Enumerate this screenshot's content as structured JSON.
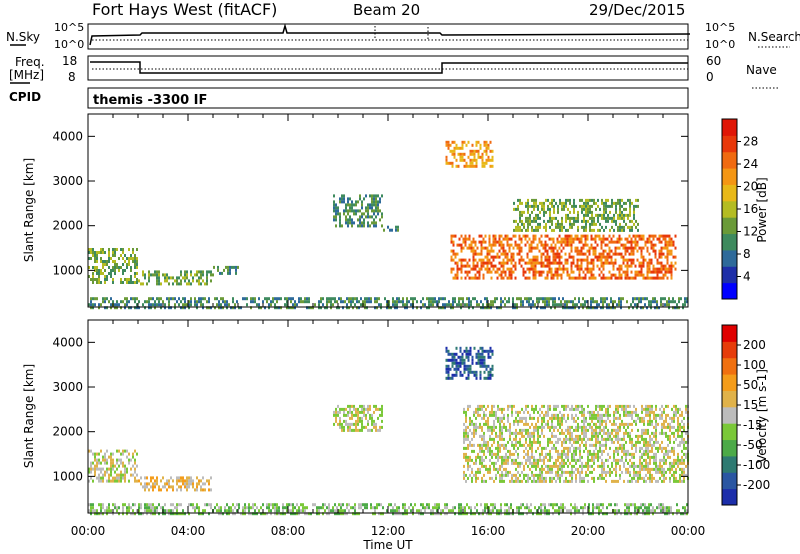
{
  "header": {
    "title": "Fort Hays West (fitACF)",
    "beam": "Beam 20",
    "date": "29/Dec/2015"
  },
  "panels": {
    "nsky": {
      "label": "N.Sky",
      "right_label": "N.Search",
      "left_ticks": [
        "10^5",
        "10^0"
      ],
      "right_ticks": [
        "10^5",
        "10^0"
      ]
    },
    "freq": {
      "label": "Freq.",
      "unit": "[MHz]",
      "right_label": "Nave",
      "left_ticks": [
        "18",
        "8"
      ],
      "right_ticks": [
        "60",
        "0"
      ]
    },
    "cpid": {
      "label": "CPID",
      "text": "themis -3300 IF"
    }
  },
  "colorbars": {
    "power": {
      "label": "Power [dB]",
      "ticks": [
        "28",
        "24",
        "20",
        "16",
        "12",
        "8",
        "4"
      ],
      "colors": [
        "#0000ff",
        "#1e2fa8",
        "#2e6a9a",
        "#3e8a5e",
        "#6a9a38",
        "#b4bc22",
        "#e8b818",
        "#f49614",
        "#f06a10",
        "#e8380a",
        "#e01606"
      ]
    },
    "velocity": {
      "label": "Velocity [m s-1]",
      "ticks": [
        "200",
        "100",
        "50",
        "15",
        "-15",
        "-50",
        "-100",
        "-200"
      ],
      "colors": [
        "#1c2eaa",
        "#2a56a2",
        "#2e7a72",
        "#4caa48",
        "#7ac838",
        "#bcbcbc",
        "#e0b24a",
        "#f49c1a",
        "#f07010",
        "#e63c0a",
        "#e00000"
      ]
    }
  },
  "axes": {
    "ylabel": "Slant Range [km]",
    "xlabel": "Time UT",
    "y_ticks": [
      1000,
      2000,
      3000,
      4000
    ],
    "x_ticks": [
      "00:00",
      "04:00",
      "08:00",
      "12:00",
      "16:00",
      "20:00",
      "00:00"
    ]
  },
  "chart_data": [
    {
      "type": "heatmap",
      "title": "Power",
      "ylabel": "Slant Range [km]",
      "xlabel": "Time UT",
      "xlim": [
        0,
        24
      ],
      "ylim": [
        180,
        4500
      ],
      "clim": [
        0,
        30
      ],
      "colorbar_label": "Power [dB]",
      "regions": [
        {
          "t": [
            0.0,
            2.0
          ],
          "r": [
            700,
            1500
          ],
          "value": 12
        },
        {
          "t": [
            2.0,
            5.0
          ],
          "r": [
            700,
            1000
          ],
          "value": 12
        },
        {
          "t": [
            5.0,
            6.0
          ],
          "r": [
            900,
            1100
          ],
          "value": 8
        },
        {
          "t": [
            9.8,
            11.8
          ],
          "r": [
            2000,
            2700
          ],
          "value": 10
        },
        {
          "t": [
            11.8,
            12.4
          ],
          "r": [
            1900,
            2000
          ],
          "value": 10
        },
        {
          "t": [
            14.3,
            16.2
          ],
          "r": [
            3300,
            3900
          ],
          "value": 20
        },
        {
          "t": [
            14.5,
            23.5
          ],
          "r": [
            800,
            1800
          ],
          "value": 24
        },
        {
          "t": [
            17.0,
            22.0
          ],
          "r": [
            1900,
            2600
          ],
          "value": 12
        },
        {
          "t": [
            0.0,
            24.0
          ],
          "r": [
            180,
            400
          ],
          "value": 10
        }
      ]
    },
    {
      "type": "heatmap",
      "title": "Velocity",
      "ylabel": "Slant Range [km]",
      "xlabel": "Time UT",
      "xlim": [
        0,
        24
      ],
      "ylim": [
        180,
        4500
      ],
      "clim": [
        -250,
        250
      ],
      "colorbar_label": "Velocity [m s-1]",
      "regions": [
        {
          "t": [
            0.0,
            2.0
          ],
          "r": [
            900,
            1600
          ],
          "value": -20
        },
        {
          "t": [
            2.0,
            5.0
          ],
          "r": [
            700,
            1000
          ],
          "value": 40
        },
        {
          "t": [
            9.8,
            11.8
          ],
          "r": [
            2000,
            2600
          ],
          "value": 0
        },
        {
          "t": [
            14.3,
            16.2
          ],
          "r": [
            3200,
            3900
          ],
          "value": -200
        },
        {
          "t": [
            15.0,
            24.0
          ],
          "r": [
            900,
            2600
          ],
          "value": 0
        },
        {
          "t": [
            0.0,
            24.0
          ],
          "r": [
            180,
            400
          ],
          "value": -40
        }
      ]
    }
  ]
}
